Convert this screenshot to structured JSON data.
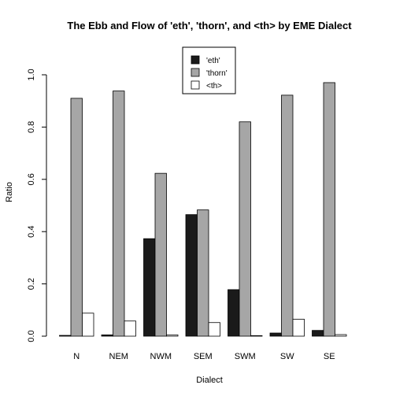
{
  "chart_data": {
    "type": "bar",
    "title": "The Ebb and Flow of 'eth', 'thorn', and <th> by EME Dialect",
    "xlabel": "Dialect",
    "ylabel": "Ratio",
    "ylim": [
      0,
      1.0
    ],
    "yticks": [
      "0.0",
      "0.2",
      "0.4",
      "0.6",
      "0.8",
      "1.0"
    ],
    "categories": [
      "N",
      "NEM",
      "NWM",
      "SEM",
      "SWM",
      "SW",
      "SE"
    ],
    "series": [
      {
        "name": "'eth'",
        "color": "#1a1a1a",
        "values": [
          0.003,
          0.005,
          0.373,
          0.465,
          0.178,
          0.012,
          0.022
        ]
      },
      {
        "name": "'thorn'",
        "color": "#a6a6a6",
        "values": [
          0.91,
          0.938,
          0.623,
          0.483,
          0.82,
          0.922,
          0.97
        ]
      },
      {
        "name": "<th>",
        "color": "#ffffff",
        "values": [
          0.088,
          0.058,
          0.005,
          0.052,
          0.002,
          0.065,
          0.006
        ]
      }
    ],
    "legend": {
      "position": "top-center"
    },
    "grid": false
  }
}
